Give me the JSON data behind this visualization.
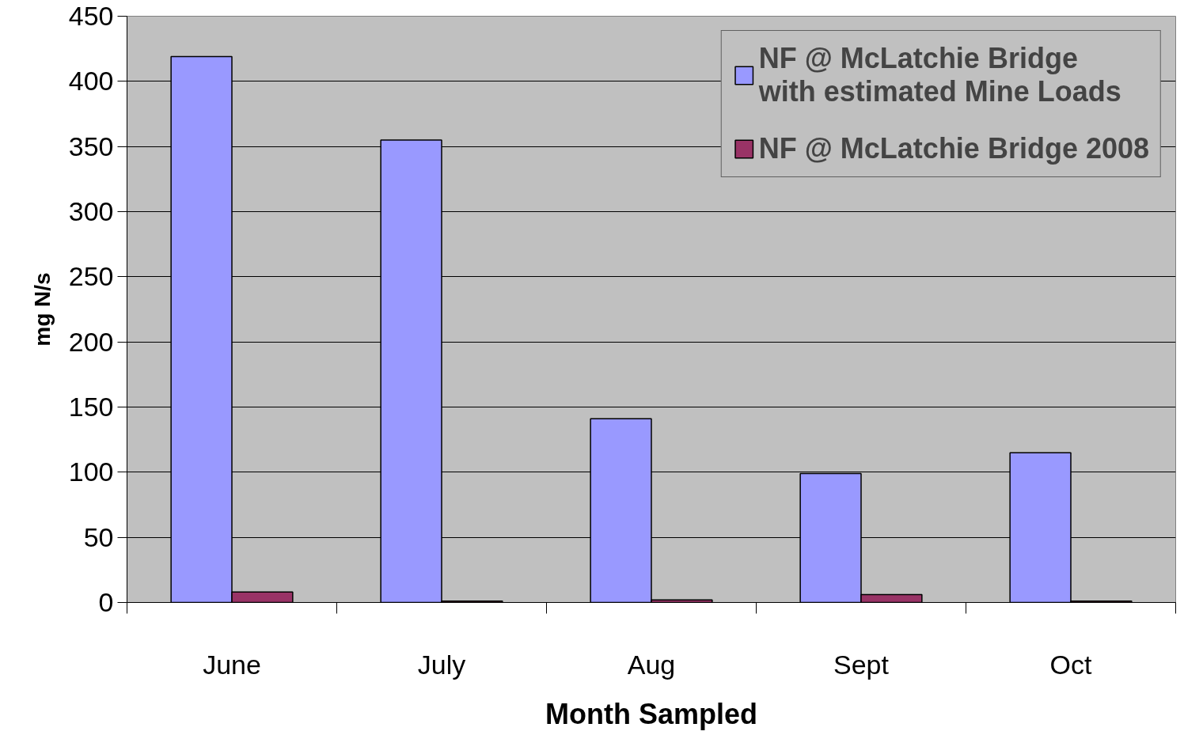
{
  "chart_data": {
    "type": "bar",
    "xlabel": "Month Sampled",
    "ylabel": "mg N/s",
    "categories": [
      "June",
      "July",
      "Aug",
      "Sept",
      "Oct"
    ],
    "series": [
      {
        "name": "NF @ McLatchie Bridge\nwith estimated Mine Loads",
        "color": "#9999ff",
        "values": [
          419,
          355,
          141,
          99,
          115
        ]
      },
      {
        "name": "NF @ McLatchie Bridge 2008",
        "color": "#993366",
        "values": [
          8,
          1,
          2,
          6,
          1
        ]
      }
    ],
    "ylim": [
      0,
      450
    ],
    "yticks": [
      0,
      50,
      100,
      150,
      200,
      250,
      300,
      350,
      400,
      450
    ],
    "grid": "y",
    "legend": "top right"
  }
}
